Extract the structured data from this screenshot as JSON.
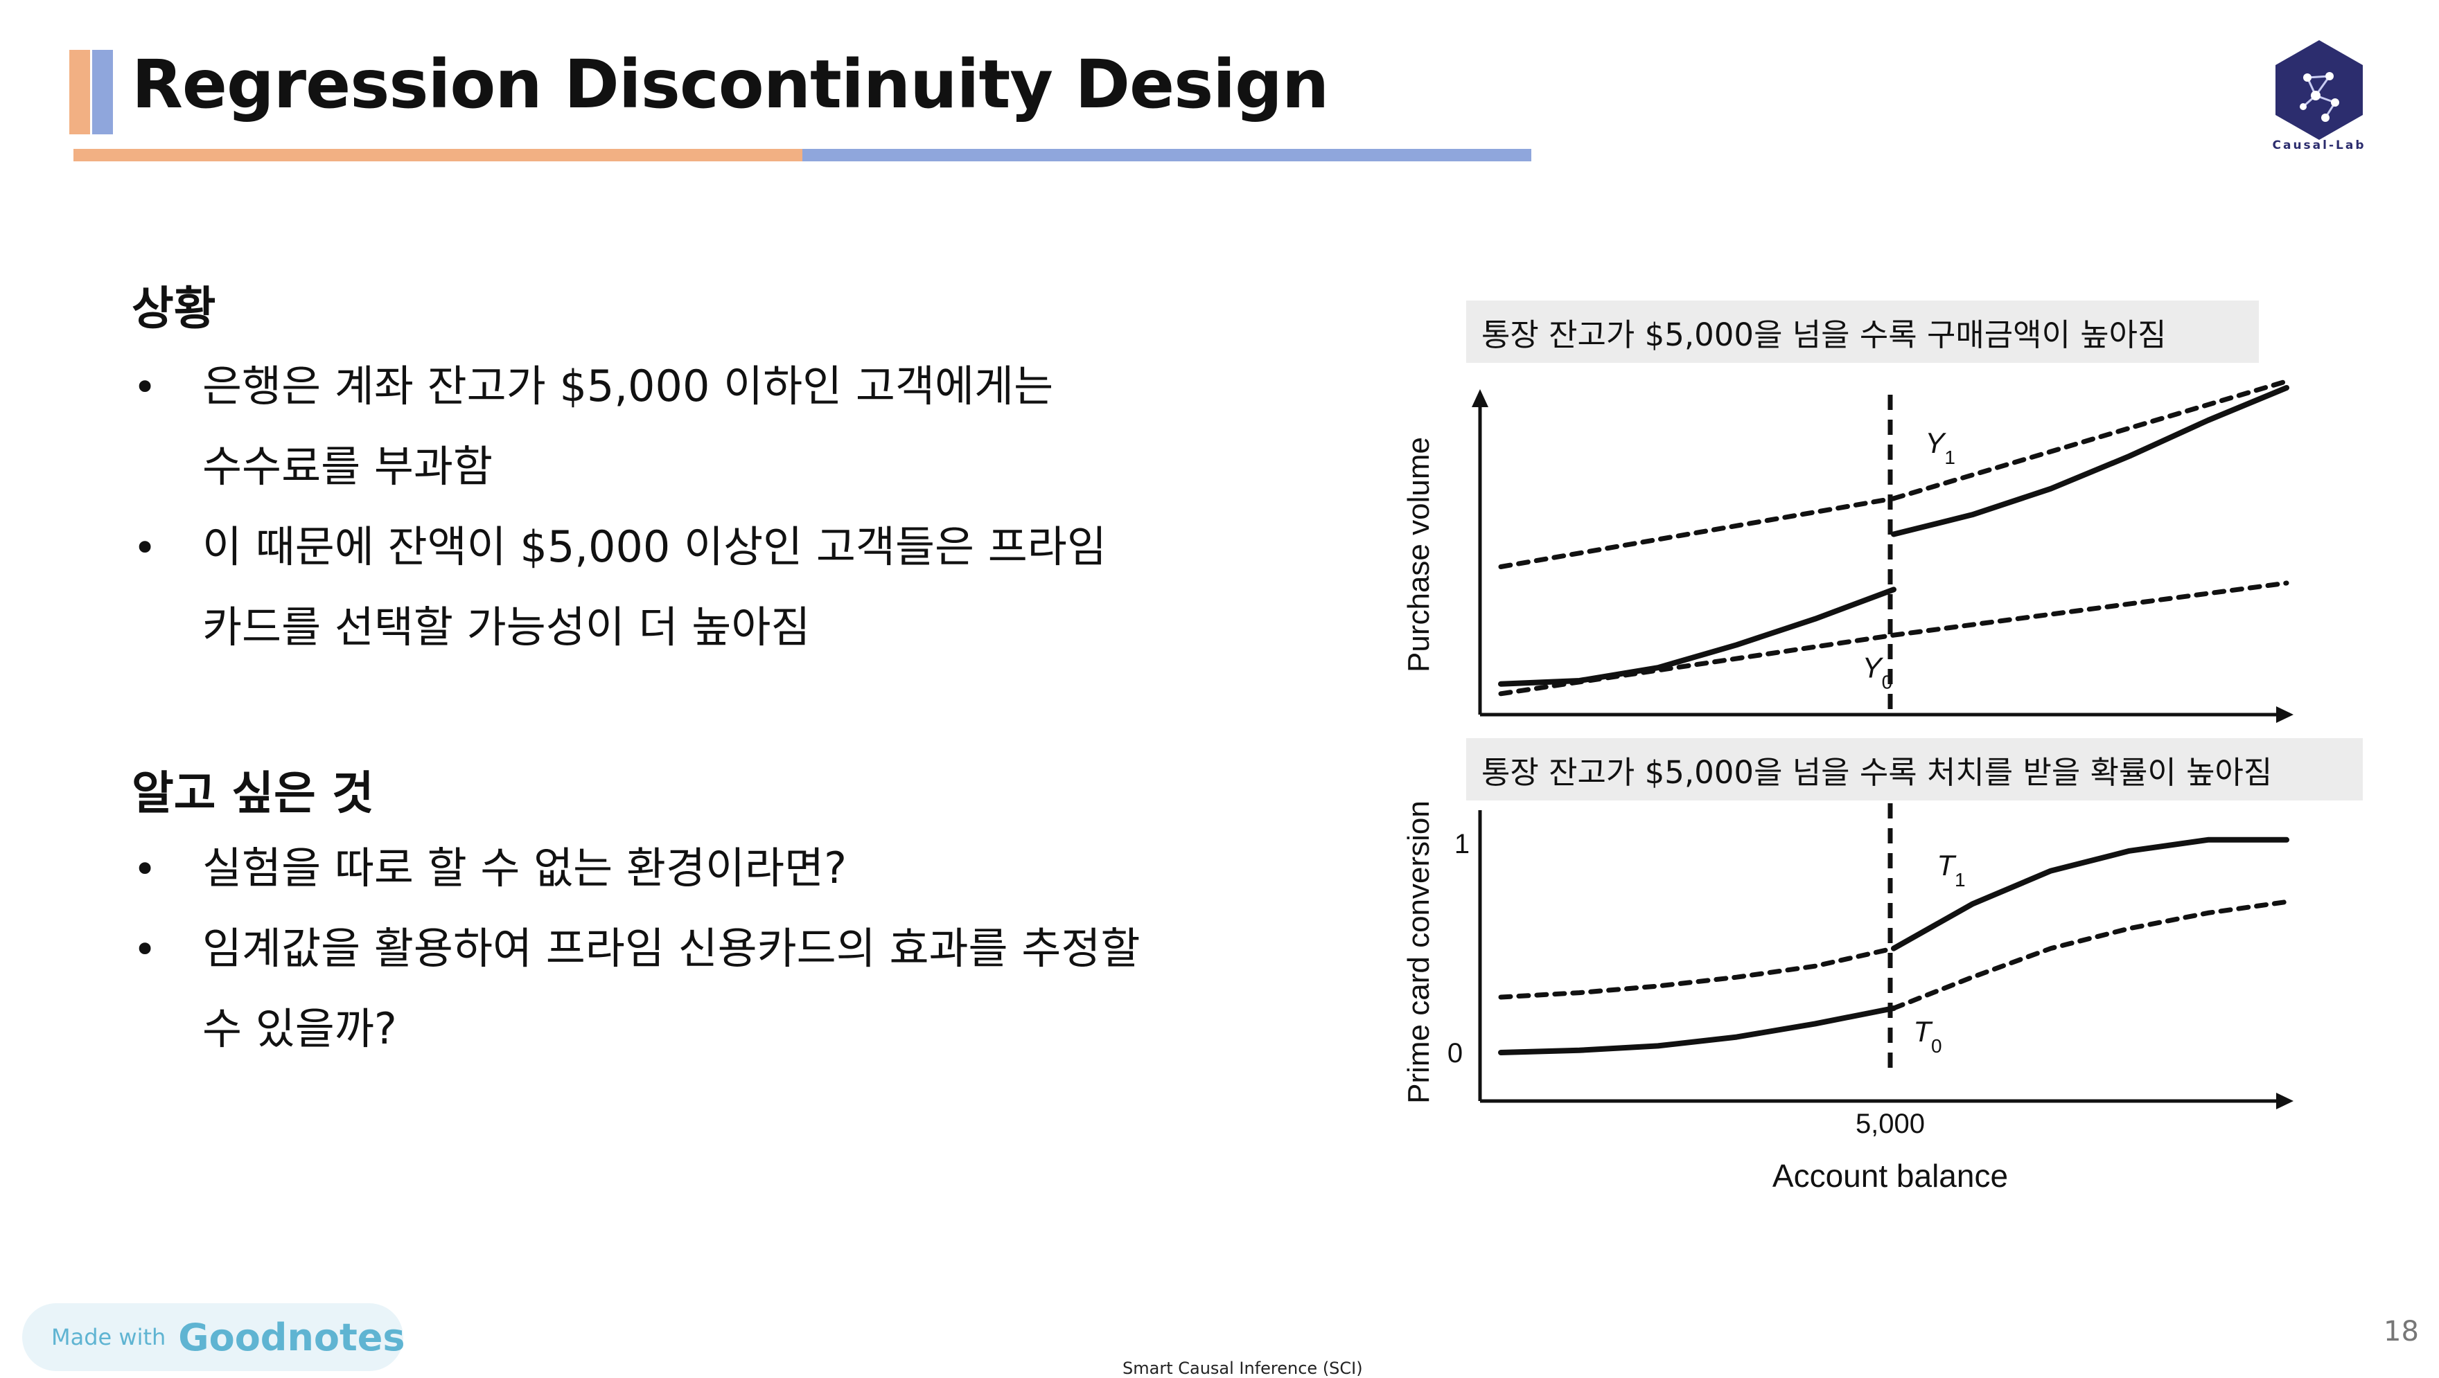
{
  "slide": {
    "title": "Regression Discontinuity Design",
    "page_number": "18",
    "footer": "Smart Causal Inference (SCI)",
    "logo_caption": "Causal-Lab",
    "colors": {
      "orange": "#f2b083",
      "blue": "#8fa6dc",
      "logo": "#2c2d6e"
    }
  },
  "sections": [
    {
      "heading": "상황",
      "bullets": [
        [
          "은행은 계좌 잔고가 $5,000 이하인 고객에게는",
          "수수료를 부과함"
        ],
        [
          "이 때문에 잔액이 $5,000 이상인 고객들은 프라임",
          "카드를 선택할 가능성이 더 높아짐"
        ]
      ]
    },
    {
      "heading": "알고 싶은 것",
      "bullets": [
        [
          "실험을 따로 할 수 없는 환경이라면?"
        ],
        [
          "임계값을 활용하여 프라임 신용카드의 효과를 추정할",
          "수 있을까?"
        ]
      ]
    }
  ],
  "bullet_symbol": "•",
  "watermark": {
    "made_with": "Made with",
    "brand": "Goodnotes"
  },
  "chart_data": [
    {
      "type": "line",
      "caption": "통장 잔고가 $5,000을 넘을 수록 구매금액이 높아짐",
      "ylabel": "Purchase volume",
      "xlabel": "",
      "cutoff": 5000,
      "xlim": [
        0,
        10000
      ],
      "ylim": [
        0,
        10
      ],
      "series": [
        {
          "name": "Y₁",
          "style": "dashed",
          "x": [
            0,
            5000
          ],
          "y": [
            4.5,
            6.6
          ]
        },
        {
          "name": "Y₁",
          "style": "solid",
          "x": [
            5000,
            6000,
            7000,
            8000,
            9000,
            10000
          ],
          "y": [
            5.5,
            6.1,
            6.9,
            7.9,
            9.0,
            10.0
          ]
        },
        {
          "name": "Y₀",
          "style": "solid",
          "x": [
            0,
            1000,
            2000,
            3000,
            4000,
            5000
          ],
          "y": [
            0.9,
            1.0,
            1.4,
            2.1,
            2.9,
            3.8
          ]
        },
        {
          "name": "Y₀",
          "style": "dashed",
          "x": [
            0,
            5000,
            10000
          ],
          "y": [
            0.6,
            2.4,
            4.0
          ]
        },
        {
          "name": "",
          "style": "dashed",
          "x": [
            5000,
            10000
          ],
          "y": [
            6.6,
            10.2
          ]
        }
      ],
      "labels": [
        {
          "text": "Y",
          "sub": "1",
          "x": 5400,
          "y": 8.0
        },
        {
          "text": "Y",
          "sub": "0",
          "x": 4600,
          "y": 1.1
        }
      ]
    },
    {
      "type": "line",
      "caption": "통장 잔고가 $5,000을 넘을 수록 처치를 받을 확률이 높아짐",
      "ylabel": "Prime card conversion",
      "xlabel": "Account balance",
      "cutoff": 5000,
      "xlim": [
        0,
        10000
      ],
      "ylim": [
        0,
        1
      ],
      "yticks": [
        "0",
        "1"
      ],
      "xticks": [
        "5,000"
      ],
      "series": [
        {
          "name": "T₀",
          "style": "solid",
          "x": [
            0,
            1000,
            2000,
            3000,
            4000,
            5000
          ],
          "y": [
            0.0,
            0.01,
            0.03,
            0.07,
            0.13,
            0.2
          ]
        },
        {
          "name": "T₀",
          "style": "dashed",
          "x": [
            0,
            1000,
            2000,
            3000,
            4000,
            5000
          ],
          "y": [
            0.25,
            0.27,
            0.3,
            0.34,
            0.39,
            0.47
          ]
        },
        {
          "name": "T₁",
          "style": "solid",
          "x": [
            5000,
            6000,
            7000,
            8000,
            9000,
            10000
          ],
          "y": [
            0.47,
            0.67,
            0.82,
            0.91,
            0.96,
            0.96
          ]
        },
        {
          "name": "T₀",
          "style": "dashed",
          "x": [
            5000,
            6000,
            7000,
            8000,
            9000,
            10000
          ],
          "y": [
            0.2,
            0.34,
            0.47,
            0.56,
            0.63,
            0.68
          ]
        }
      ],
      "labels": [
        {
          "text": "T",
          "sub": "1",
          "x": 5550,
          "y": 0.8
        },
        {
          "text": "T",
          "sub": "0",
          "x": 5250,
          "y": 0.05
        }
      ]
    }
  ]
}
